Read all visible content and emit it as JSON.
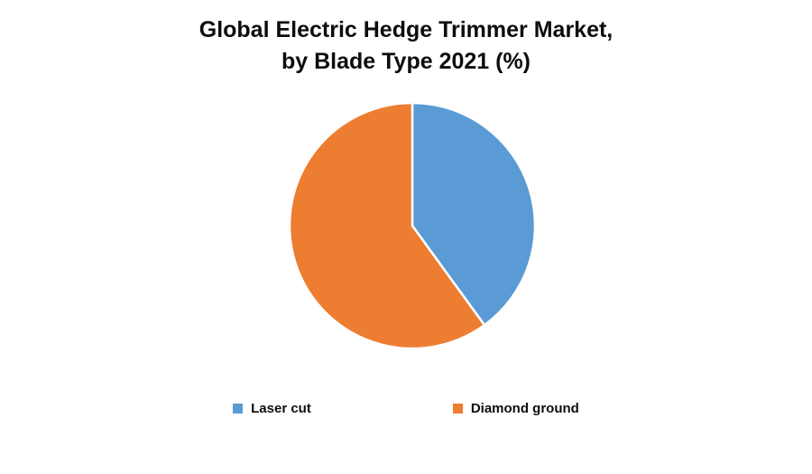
{
  "chart_data": {
    "type": "pie",
    "title": "Global Electric Hedge Trimmer Market,\nby Blade Type 2021 (%)",
    "labels": [
      "Laser cut",
      "Diamond ground"
    ],
    "values": [
      40,
      60
    ],
    "colors": [
      "#5B9BD5",
      "#ED7D31"
    ],
    "slice_separator_color": "#FFFFFF",
    "background": "#FFFFFF",
    "start_angle_deg": 0,
    "direction": "clockwise",
    "legend_position": "bottom",
    "data_labels_shown": false
  }
}
